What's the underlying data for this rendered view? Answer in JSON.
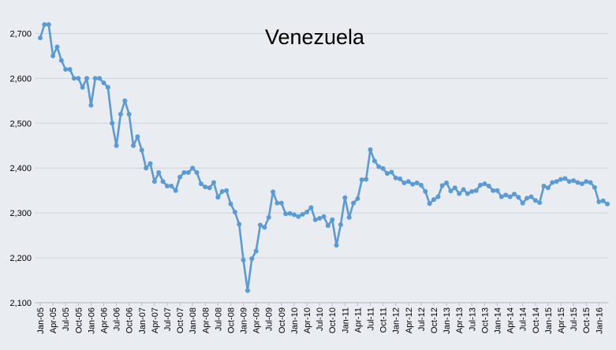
{
  "chart_data": {
    "type": "line",
    "title": "Venezuela",
    "xlabel": "",
    "ylabel": "",
    "ylim": [
      2100,
      2750
    ],
    "yticks": [
      2100,
      2200,
      2300,
      2400,
      2500,
      2600,
      2700
    ],
    "ytick_labels": [
      "2,100",
      "2,200",
      "2,300",
      "2,400",
      "2,500",
      "2,600",
      "2,700"
    ],
    "grid": true,
    "legend": "none",
    "x_start": "Jan-05",
    "xtick_labels": [
      "Jan-05",
      "Apr-05",
      "Jul-05",
      "Oct-05",
      "Jan-06",
      "Apr-06",
      "Jul-06",
      "Oct-06",
      "Jan-07",
      "Apr-07",
      "Jul-07",
      "Oct-07",
      "Jan-08",
      "Apr-08",
      "Jul-08",
      "Oct-08",
      "Jan-09",
      "Apr-09",
      "Jul-09",
      "Oct-09",
      "Jan-10",
      "Apr-10",
      "Jul-10",
      "Oct-10",
      "Jan-11",
      "Apr-11",
      "Jul-11",
      "Oct-11",
      "Jan-12",
      "Apr-12",
      "Jul-12",
      "Oct-12",
      "Jan-13",
      "Apr-13",
      "Jul-13",
      "Oct-13",
      "Jan-14",
      "Apr-14",
      "Jul-14",
      "Oct-14",
      "Jan-15",
      "Apr-15",
      "Jul-15",
      "Oct-15",
      "Jan-16"
    ],
    "colors": {
      "line": "#5b9bd5",
      "background": "#e9ecf1",
      "grid": "#d0d4da",
      "text": "#000000"
    },
    "series": [
      {
        "values": [
          2690,
          2720,
          2720,
          2650,
          2670,
          2640,
          2620,
          2620,
          2600,
          2600,
          2580,
          2600,
          2540,
          2600,
          2600,
          2590,
          2580,
          2500,
          2450,
          2520,
          2550,
          2520,
          2450,
          2470,
          2440,
          2400,
          2410,
          2370,
          2390,
          2370,
          2360,
          2360,
          2350,
          2380,
          2390,
          2390,
          2400,
          2390,
          2365,
          2358,
          2356,
          2368,
          2335,
          2348,
          2350,
          2320,
          2302,
          2275,
          2195,
          2127,
          2198,
          2215,
          2273,
          2268,
          2290,
          2347,
          2322,
          2322,
          2298,
          2299,
          2296,
          2292,
          2297,
          2302,
          2312,
          2285,
          2288,
          2292,
          2272,
          2285,
          2228,
          2274,
          2334,
          2290,
          2322,
          2332,
          2374,
          2375,
          2441,
          2416,
          2403,
          2399,
          2388,
          2391,
          2378,
          2376,
          2367,
          2370,
          2364,
          2367,
          2362,
          2348,
          2321,
          2330,
          2336,
          2361,
          2367,
          2349,
          2356,
          2343,
          2352,
          2343,
          2348,
          2350,
          2362,
          2365,
          2360,
          2350,
          2350,
          2336,
          2340,
          2336,
          2342,
          2335,
          2322,
          2333,
          2336,
          2328,
          2323,
          2360,
          2356,
          2368,
          2370,
          2375,
          2377,
          2370,
          2372,
          2368,
          2365,
          2370,
          2368,
          2357,
          2325,
          2327,
          2320
        ]
      }
    ]
  }
}
